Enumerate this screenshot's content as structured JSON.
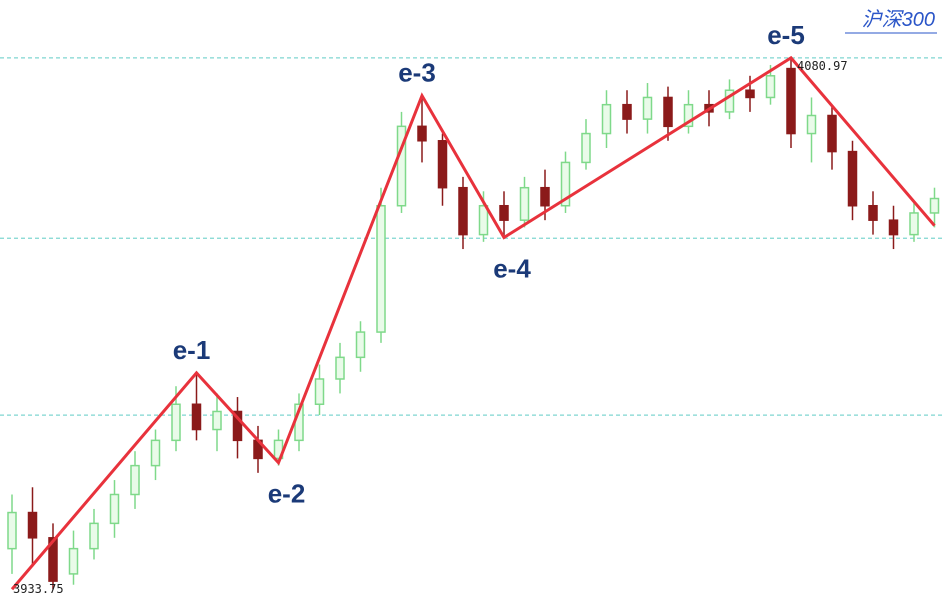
{
  "chart_data": {
    "type": "candlestick",
    "title": "沪深300",
    "categories": [
      null,
      null,
      null,
      null,
      null,
      null,
      null,
      null,
      null,
      null,
      null,
      null,
      null,
      null,
      null,
      null,
      null,
      null,
      null,
      null,
      null,
      null,
      null,
      null,
      null,
      null,
      null,
      null,
      null,
      null,
      null,
      null,
      null,
      null,
      null,
      null,
      null,
      null,
      null,
      null,
      null,
      null,
      null,
      null,
      null,
      null
    ],
    "open": [
      3945,
      3955,
      3948,
      3938,
      3945,
      3952,
      3960,
      3968,
      3975,
      3985,
      3978,
      3983,
      3975,
      3970,
      3975,
      3985,
      3992,
      3998,
      4005,
      4040,
      4062,
      4058,
      4045,
      4032,
      4040,
      4036,
      4045,
      4040,
      4052,
      4060,
      4068,
      4064,
      4070,
      4062,
      4068,
      4066,
      4072,
      4070,
      4078,
      4060,
      4065,
      4055,
      4040,
      4036,
      4032,
      4038
    ],
    "high": [
      3960,
      3962,
      3952,
      3950,
      3956,
      3964,
      3972,
      3978,
      3990,
      3994,
      3988,
      3987,
      3979,
      3978,
      3988,
      3996,
      4002,
      4008,
      4045,
      4066,
      4070,
      4060,
      4048,
      4044,
      4044,
      4048,
      4050,
      4055,
      4064,
      4072,
      4072,
      4074,
      4073,
      4072,
      4072,
      4075,
      4076,
      4079,
      4080.97,
      4070,
      4068,
      4058,
      4044,
      4040,
      4041,
      4045
    ],
    "low": [
      3938,
      3940,
      3933.75,
      3935,
      3942,
      3948,
      3956,
      3964,
      3972,
      3975,
      3972,
      3970,
      3966,
      3968,
      3972,
      3982,
      3988,
      3994,
      4002,
      4038,
      4052,
      4040,
      4028,
      4030,
      4031,
      4034,
      4036,
      4038,
      4050,
      4056,
      4060,
      4060,
      4058,
      4060,
      4062,
      4064,
      4066,
      4068,
      4056,
      4052,
      4050,
      4036,
      4032,
      4028,
      4030,
      4034
    ],
    "close": [
      3955,
      3948,
      3936,
      3945,
      3952,
      3960,
      3968,
      3975,
      3985,
      3978,
      3983,
      3975,
      3970,
      3975,
      3985,
      3992,
      3998,
      4005,
      4040,
      4062,
      4058,
      4045,
      4032,
      4040,
      4036,
      4045,
      4040,
      4052,
      4060,
      4068,
      4064,
      4070,
      4062,
      4068,
      4066,
      4072,
      4070,
      4076,
      4060,
      4065,
      4055,
      4040,
      4036,
      4032,
      4038,
      4042
    ],
    "up_color": "#7fd98a",
    "down_color": "#8b1a1a",
    "ylim": [
      3928,
      4097
    ],
    "reference_lines": [
      4080.97,
      4031,
      3982
    ],
    "reference_color": "#7fd6d0",
    "wave": {
      "color": "#e8323c",
      "x": [
        0,
        9,
        13,
        20,
        24,
        38,
        45
      ],
      "values": [
        3933.75,
        3993.7,
        3968.8,
        4070.5,
        4031.2,
        4080.97,
        4034.5
      ],
      "labels": [
        null,
        "e-1",
        "e-2",
        "e-3",
        "e-4",
        "e-5",
        null
      ]
    },
    "price_labels": [
      4080.97,
      3933.75
    ]
  }
}
